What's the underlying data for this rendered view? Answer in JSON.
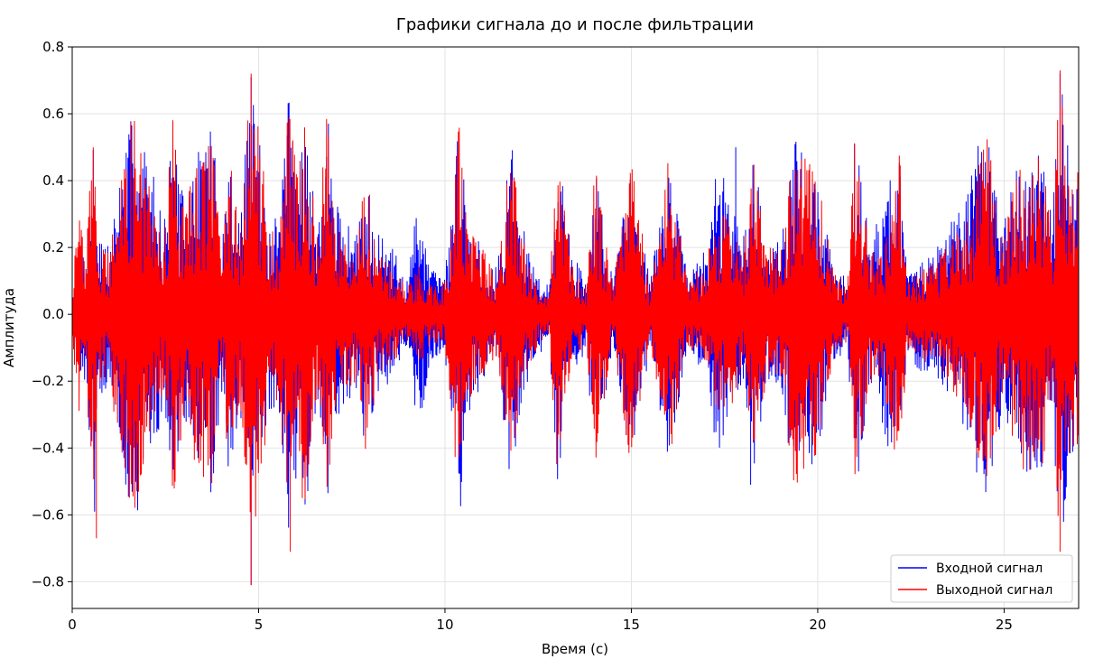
{
  "chart_data": {
    "type": "line",
    "title": "Графики сигнала до и после фильтрации",
    "xlabel": "Время (с)",
    "ylabel": "Амплитуда",
    "xlim": [
      0,
      27
    ],
    "ylim": [
      -0.88,
      0.8
    ],
    "xticks": [
      0,
      5,
      10,
      15,
      20,
      25
    ],
    "xtick_labels": [
      "0",
      "5",
      "10",
      "15",
      "20",
      "25"
    ],
    "yticks": [
      -0.8,
      -0.6,
      -0.4,
      -0.2,
      0.0,
      0.2,
      0.4,
      0.6,
      0.8
    ],
    "ytick_labels": [
      "−0.8",
      "−0.6",
      "−0.4",
      "−0.2",
      "0.0",
      "0.2",
      "0.4",
      "0.6",
      "0.8"
    ],
    "grid": true,
    "legend_position": "bottom-right",
    "series": [
      {
        "name": "Входной сигнал",
        "color": "#0000ff",
        "x": [
          0.0,
          0.15,
          0.35,
          0.6,
          0.65,
          1.0,
          1.2,
          1.65,
          2.2,
          2.45,
          2.7,
          3.0,
          3.4,
          3.75,
          4.0,
          4.2,
          4.5,
          4.8,
          5.0,
          5.3,
          5.55,
          5.8,
          6.05,
          6.2,
          6.6,
          6.85,
          7.0,
          7.3,
          7.6,
          7.9,
          8.2,
          8.6,
          9.0,
          9.3,
          9.6,
          10.0,
          10.4,
          10.6,
          11.0,
          11.4,
          11.8,
          12.0,
          12.4,
          12.8,
          13.0,
          13.4,
          13.8,
          14.0,
          14.5,
          15.0,
          15.5,
          16.0,
          16.5,
          17.0,
          17.3,
          17.6,
          18.0,
          18.3,
          18.6,
          19.0,
          19.4,
          20.0,
          20.4,
          20.8,
          21.0,
          21.4,
          21.8,
          22.2,
          22.4,
          22.8,
          23.2,
          23.6,
          24.0,
          24.5,
          25.0,
          25.3,
          25.6,
          26.0,
          26.3,
          26.5,
          26.8,
          27.0
        ],
        "envelope": [
          0.05,
          0.18,
          0.2,
          0.6,
          0.3,
          0.2,
          0.38,
          0.63,
          0.42,
          0.27,
          0.55,
          0.34,
          0.5,
          0.6,
          0.22,
          0.5,
          0.28,
          0.71,
          0.55,
          0.3,
          0.28,
          0.67,
          0.45,
          0.66,
          0.25,
          0.62,
          0.34,
          0.3,
          0.22,
          0.43,
          0.24,
          0.2,
          0.1,
          0.4,
          0.14,
          0.12,
          0.62,
          0.3,
          0.22,
          0.14,
          0.55,
          0.3,
          0.14,
          0.08,
          0.52,
          0.2,
          0.1,
          0.47,
          0.1,
          0.47,
          0.1,
          0.46,
          0.12,
          0.2,
          0.46,
          0.38,
          0.24,
          0.5,
          0.24,
          0.22,
          0.54,
          0.42,
          0.16,
          0.1,
          0.55,
          0.22,
          0.38,
          0.5,
          0.12,
          0.18,
          0.2,
          0.28,
          0.36,
          0.6,
          0.28,
          0.46,
          0.5,
          0.47,
          0.3,
          0.72,
          0.42,
          0.4
        ],
        "notable_peaks": [
          [
            4.8,
            0.71
          ],
          [
            4.8,
            -0.81
          ],
          [
            17.8,
            0.5
          ],
          [
            18.2,
            -0.51
          ],
          [
            26.5,
            0.72
          ]
        ]
      },
      {
        "name": "Выходной сигнал",
        "color": "#ff0000",
        "x": [
          0.0,
          0.15,
          0.35,
          0.6,
          0.65,
          1.0,
          1.2,
          1.65,
          2.2,
          2.45,
          2.7,
          3.0,
          3.4,
          3.75,
          4.0,
          4.2,
          4.5,
          4.8,
          5.0,
          5.3,
          5.55,
          5.8,
          6.05,
          6.2,
          6.6,
          6.85,
          7.0,
          7.3,
          7.6,
          7.9,
          8.2,
          8.6,
          9.0,
          9.3,
          9.6,
          10.0,
          10.4,
          10.6,
          11.0,
          11.4,
          11.8,
          12.0,
          12.4,
          12.8,
          13.0,
          13.4,
          13.8,
          14.0,
          14.5,
          15.0,
          15.5,
          16.0,
          16.5,
          17.0,
          17.3,
          17.6,
          18.0,
          18.3,
          18.6,
          19.0,
          19.4,
          20.0,
          20.4,
          20.8,
          21.0,
          21.4,
          21.8,
          22.2,
          22.4,
          22.8,
          23.2,
          23.6,
          24.0,
          24.5,
          25.0,
          25.3,
          25.6,
          26.0,
          26.3,
          26.5,
          26.8,
          27.0
        ],
        "envelope": [
          0.05,
          0.36,
          0.18,
          0.61,
          0.22,
          0.18,
          0.38,
          0.64,
          0.3,
          0.24,
          0.6,
          0.3,
          0.5,
          0.52,
          0.2,
          0.5,
          0.26,
          0.72,
          0.55,
          0.28,
          0.26,
          0.67,
          0.44,
          0.64,
          0.22,
          0.68,
          0.3,
          0.24,
          0.2,
          0.44,
          0.18,
          0.16,
          0.08,
          0.16,
          0.1,
          0.1,
          0.6,
          0.28,
          0.2,
          0.12,
          0.54,
          0.26,
          0.12,
          0.06,
          0.5,
          0.16,
          0.08,
          0.47,
          0.08,
          0.47,
          0.08,
          0.47,
          0.1,
          0.16,
          0.3,
          0.3,
          0.18,
          0.49,
          0.22,
          0.18,
          0.55,
          0.42,
          0.14,
          0.08,
          0.6,
          0.2,
          0.24,
          0.5,
          0.1,
          0.14,
          0.16,
          0.24,
          0.28,
          0.6,
          0.2,
          0.46,
          0.5,
          0.47,
          0.28,
          0.73,
          0.4,
          0.44
        ],
        "notable_peaks": [
          [
            0.65,
            -0.67
          ],
          [
            4.8,
            0.72
          ],
          [
            4.8,
            -0.81
          ],
          [
            5.85,
            -0.71
          ],
          [
            26.5,
            0.73
          ],
          [
            26.5,
            -0.71
          ]
        ]
      }
    ]
  }
}
